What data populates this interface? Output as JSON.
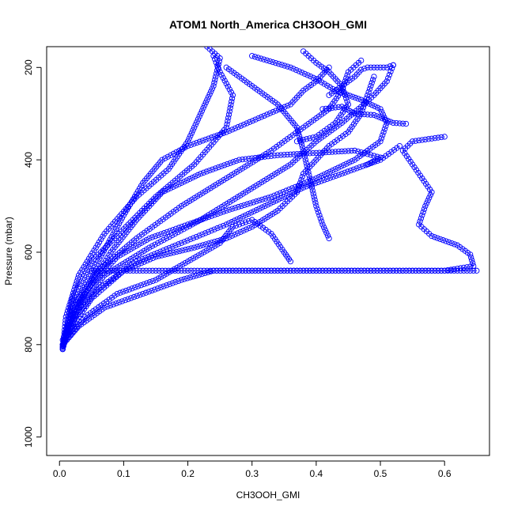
{
  "chart_data": {
    "type": "scatter",
    "title": "ATOM1 North_America CH3OOH_GMI",
    "xlabel": "CH3OOH_GMI",
    "ylabel": "Pressure (mbar)",
    "xlim": [
      -0.02,
      0.67
    ],
    "ylim": [
      1040,
      155
    ],
    "y_reversed": true,
    "x_ticks": [
      0.0,
      0.1,
      0.2,
      0.3,
      0.4,
      0.5,
      0.6
    ],
    "x_tick_labels": [
      "0.0",
      "0.1",
      "0.2",
      "0.3",
      "0.4",
      "0.5",
      "0.6"
    ],
    "y_ticks": [
      200,
      400,
      600,
      800,
      1000
    ],
    "y_tick_labels": [
      "200",
      "400",
      "600",
      "800",
      "1000"
    ],
    "grid": false,
    "legend": "none",
    "marker": "open-circle",
    "connected": true,
    "color": "#0000ff",
    "series": [
      {
        "points": [
          [
            0.005,
            810
          ],
          [
            0.01,
            740
          ],
          [
            0.03,
            650
          ],
          [
            0.07,
            560
          ],
          [
            0.12,
            480
          ],
          [
            0.17,
            420
          ],
          [
            0.2,
            360
          ],
          [
            0.22,
            300
          ],
          [
            0.24,
            240
          ],
          [
            0.25,
            180
          ],
          [
            0.23,
            155
          ]
        ]
      },
      {
        "points": [
          [
            0.005,
            805
          ],
          [
            0.02,
            700
          ],
          [
            0.05,
            620
          ],
          [
            0.1,
            550
          ],
          [
            0.15,
            480
          ],
          [
            0.21,
            410
          ],
          [
            0.26,
            330
          ],
          [
            0.27,
            260
          ],
          [
            0.25,
            210
          ],
          [
            0.24,
            175
          ]
        ]
      },
      {
        "points": [
          [
            0.005,
            808
          ],
          [
            0.02,
            720
          ],
          [
            0.06,
            640
          ],
          [
            0.12,
            570
          ],
          [
            0.19,
            500
          ],
          [
            0.26,
            440
          ],
          [
            0.33,
            380
          ],
          [
            0.38,
            330
          ],
          [
            0.42,
            290
          ],
          [
            0.44,
            250
          ],
          [
            0.45,
            210
          ],
          [
            0.47,
            185
          ]
        ]
      },
      {
        "points": [
          [
            0.005,
            800
          ],
          [
            0.03,
            720
          ],
          [
            0.07,
            650
          ],
          [
            0.14,
            590
          ],
          [
            0.22,
            530
          ],
          [
            0.29,
            470
          ],
          [
            0.36,
            410
          ],
          [
            0.4,
            360
          ],
          [
            0.44,
            320
          ],
          [
            0.47,
            285
          ],
          [
            0.49,
            260
          ],
          [
            0.51,
            230
          ],
          [
            0.52,
            195
          ]
        ]
      },
      {
        "points": [
          [
            0.005,
            805
          ],
          [
            0.025,
            740
          ],
          [
            0.06,
            680
          ],
          [
            0.12,
            620
          ],
          [
            0.19,
            580
          ],
          [
            0.26,
            540
          ],
          [
            0.32,
            500
          ],
          [
            0.38,
            460
          ],
          [
            0.44,
            430
          ],
          [
            0.5,
            400
          ],
          [
            0.53,
            370
          ]
        ]
      },
      {
        "points": [
          [
            0.005,
            800
          ],
          [
            0.03,
            760
          ],
          [
            0.07,
            720
          ],
          [
            0.13,
            690
          ],
          [
            0.19,
            660
          ],
          [
            0.24,
            640
          ],
          [
            0.35,
            640
          ],
          [
            0.45,
            640
          ],
          [
            0.55,
            640
          ],
          [
            0.65,
            640
          ]
        ]
      },
      {
        "points": [
          [
            0.05,
            640
          ],
          [
            0.2,
            640
          ],
          [
            0.34,
            640
          ],
          [
            0.5,
            640
          ],
          [
            0.6,
            640
          ],
          [
            0.645,
            630
          ],
          [
            0.64,
            605
          ],
          [
            0.62,
            585
          ],
          [
            0.58,
            565
          ],
          [
            0.56,
            540
          ],
          [
            0.57,
            500
          ],
          [
            0.58,
            470
          ],
          [
            0.565,
            440
          ],
          [
            0.55,
            410
          ],
          [
            0.535,
            380
          ],
          [
            0.55,
            360
          ],
          [
            0.6,
            350
          ]
        ]
      },
      {
        "points": [
          [
            0.005,
            800
          ],
          [
            0.04,
            740
          ],
          [
            0.09,
            690
          ],
          [
            0.15,
            660
          ],
          [
            0.2,
            620
          ],
          [
            0.25,
            580
          ],
          [
            0.27,
            545
          ],
          [
            0.3,
            530
          ],
          [
            0.33,
            560
          ],
          [
            0.35,
            600
          ],
          [
            0.36,
            620
          ]
        ]
      },
      {
        "points": [
          [
            0.005,
            810
          ],
          [
            0.02,
            730
          ],
          [
            0.05,
            670
          ],
          [
            0.09,
            610
          ],
          [
            0.14,
            570
          ],
          [
            0.2,
            540
          ],
          [
            0.26,
            510
          ],
          [
            0.33,
            480
          ],
          [
            0.4,
            440
          ],
          [
            0.46,
            400
          ],
          [
            0.5,
            360
          ],
          [
            0.51,
            320
          ],
          [
            0.5,
            290
          ],
          [
            0.47,
            270
          ],
          [
            0.43,
            250
          ],
          [
            0.4,
            225
          ],
          [
            0.36,
            200
          ],
          [
            0.3,
            175
          ]
        ]
      },
      {
        "points": [
          [
            0.01,
            780
          ],
          [
            0.05,
            700
          ],
          [
            0.1,
            640
          ],
          [
            0.15,
            610
          ],
          [
            0.21,
            590
          ],
          [
            0.26,
            570
          ],
          [
            0.3,
            545
          ],
          [
            0.34,
            510
          ],
          [
            0.37,
            470
          ],
          [
            0.38,
            430
          ],
          [
            0.4,
            400
          ],
          [
            0.42,
            370
          ],
          [
            0.45,
            340
          ],
          [
            0.47,
            300
          ],
          [
            0.48,
            260
          ],
          [
            0.49,
            220
          ]
        ]
      },
      {
        "points": [
          [
            0.005,
            790
          ],
          [
            0.03,
            700
          ],
          [
            0.06,
            620
          ],
          [
            0.1,
            520
          ],
          [
            0.13,
            450
          ],
          [
            0.16,
            400
          ],
          [
            0.2,
            370
          ],
          [
            0.26,
            340
          ],
          [
            0.31,
            310
          ],
          [
            0.36,
            280
          ],
          [
            0.38,
            250
          ],
          [
            0.4,
            230
          ],
          [
            0.42,
            200
          ]
        ]
      },
      {
        "points": [
          [
            0.01,
            770
          ],
          [
            0.04,
            690
          ],
          [
            0.08,
            600
          ],
          [
            0.12,
            530
          ],
          [
            0.16,
            470
          ],
          [
            0.22,
            430
          ],
          [
            0.28,
            400
          ],
          [
            0.34,
            390
          ],
          [
            0.4,
            385
          ],
          [
            0.46,
            380
          ],
          [
            0.5,
            395
          ],
          [
            0.48,
            410
          ]
        ]
      },
      {
        "points": [
          [
            0.26,
            200
          ],
          [
            0.3,
            240
          ],
          [
            0.34,
            280
          ],
          [
            0.37,
            330
          ],
          [
            0.38,
            380
          ],
          [
            0.39,
            440
          ],
          [
            0.4,
            500
          ],
          [
            0.41,
            540
          ],
          [
            0.42,
            570
          ]
        ]
      },
      {
        "points": [
          [
            0.42,
            260
          ],
          [
            0.44,
            240
          ],
          [
            0.46,
            220
          ],
          [
            0.47,
            205
          ],
          [
            0.48,
            200
          ],
          [
            0.51,
            200
          ],
          [
            0.52,
            195
          ]
        ]
      },
      {
        "points": [
          [
            0.41,
            290
          ],
          [
            0.44,
            285
          ],
          [
            0.46,
            300
          ],
          [
            0.49,
            303
          ],
          [
            0.52,
            320
          ],
          [
            0.54,
            322
          ]
        ]
      },
      {
        "points": [
          [
            0.38,
            165
          ],
          [
            0.4,
            190
          ],
          [
            0.42,
            210
          ],
          [
            0.44,
            240
          ],
          [
            0.45,
            280
          ],
          [
            0.43,
            320
          ],
          [
            0.4,
            350
          ],
          [
            0.37,
            360
          ]
        ]
      }
    ]
  }
}
